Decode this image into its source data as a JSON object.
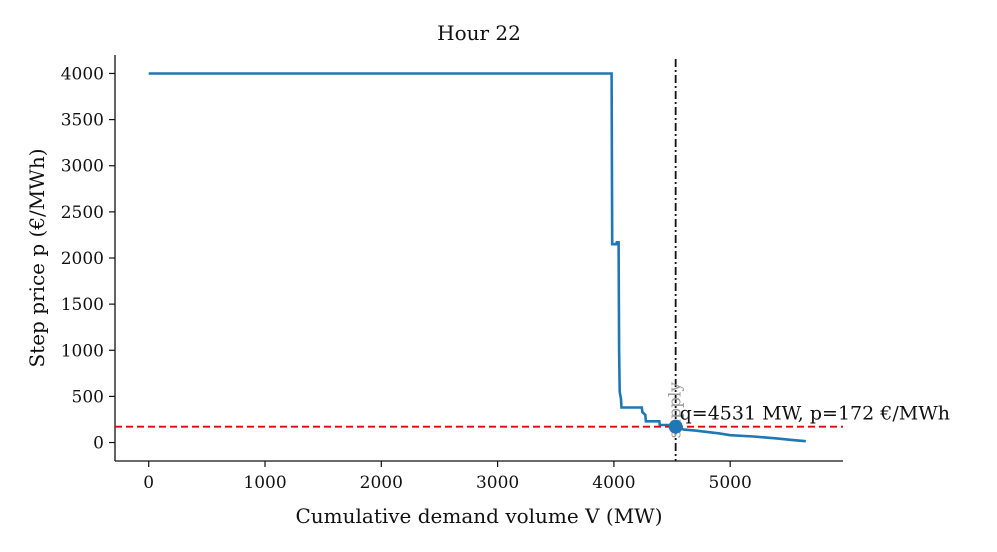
{
  "chart_data": {
    "type": "line",
    "title": "Hour 22",
    "xlabel": "Cumulative demand volume V (MW)",
    "ylabel": "Step price p (€/MWh)",
    "xlim": [
      -290,
      5970
    ],
    "ylim": [
      -200,
      4200
    ],
    "xticks": [
      0,
      1000,
      2000,
      3000,
      4000,
      5000
    ],
    "yticks": [
      0,
      500,
      1000,
      1500,
      2000,
      2500,
      3000,
      3500,
      4000
    ],
    "grid": false,
    "series": [
      {
        "kind": "step",
        "color": "#1f77b4",
        "points": [
          [
            0,
            4000
          ],
          [
            3980,
            4000
          ],
          [
            3985,
            2150
          ],
          [
            4020,
            2150
          ],
          [
            4025,
            2170
          ],
          [
            4040,
            2170
          ],
          [
            4045,
            1000
          ],
          [
            4050,
            550
          ],
          [
            4060,
            480
          ],
          [
            4065,
            380
          ],
          [
            4240,
            380
          ],
          [
            4245,
            330
          ],
          [
            4270,
            300
          ],
          [
            4275,
            230
          ],
          [
            4390,
            230
          ],
          [
            4395,
            190
          ],
          [
            4500,
            190
          ],
          [
            4531,
            172
          ],
          [
            4600,
            140
          ],
          [
            4700,
            130
          ],
          [
            4800,
            115
          ],
          [
            4900,
            100
          ],
          [
            5000,
            80
          ],
          [
            5200,
            65
          ],
          [
            5400,
            45
          ],
          [
            5550,
            25
          ],
          [
            5650,
            15
          ]
        ]
      }
    ],
    "reference_lines": [
      {
        "orientation": "horizontal",
        "value": 172,
        "color": "#e8000b",
        "style": "dashed"
      },
      {
        "orientation": "vertical",
        "value": 4531,
        "color": "#111111",
        "style": "dashdot",
        "label": "supply"
      }
    ],
    "marker": {
      "x": 4531,
      "y": 172,
      "color": "#1f77b4"
    },
    "annotation": "q=4531 MW, p=172 €/MWh"
  }
}
